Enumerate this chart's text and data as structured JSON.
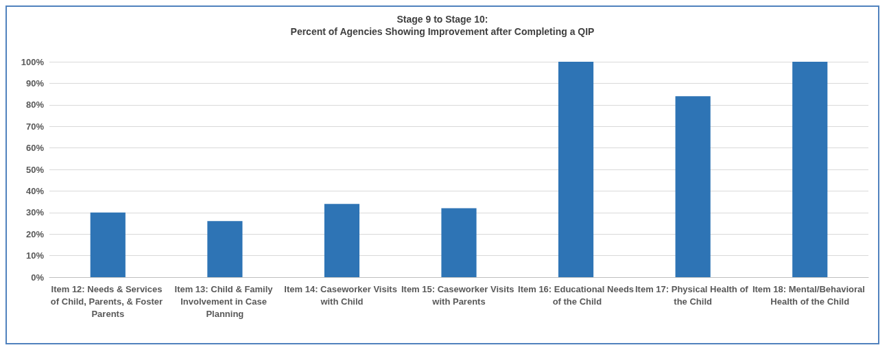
{
  "chart_data": {
    "type": "bar",
    "title": "Stage 9 to Stage 10:",
    "subtitle": "Percent of Agencies Showing Improvement after Completing a QIP",
    "categories": [
      "Item 12: Needs & Services of Child, Parents, & Foster Parents",
      "Item 13: Child & Family Involvement in Case Planning",
      "Item 14: Caseworker Visits with Child",
      "Item 15: Caseworker Visits with Parents",
      "Item 16: Educational Needs of the Child",
      "Item 17: Physical Health of the Child",
      "Item 18: Mental/Behavioral Health of the Child"
    ],
    "values": [
      30,
      26,
      34,
      32,
      100,
      84,
      100
    ],
    "color": "#2e74b5",
    "ylim": [
      0,
      100
    ],
    "yticks": [
      {
        "value": 0,
        "label": "0%"
      },
      {
        "value": 10,
        "label": "10%"
      },
      {
        "value": 20,
        "label": "20%"
      },
      {
        "value": 30,
        "label": "30%"
      },
      {
        "value": 40,
        "label": "40%"
      },
      {
        "value": 50,
        "label": "50%"
      },
      {
        "value": 60,
        "label": "60%"
      },
      {
        "value": 70,
        "label": "70%"
      },
      {
        "value": 80,
        "label": "80%"
      },
      {
        "value": 90,
        "label": "90%"
      },
      {
        "value": 100,
        "label": "100%"
      }
    ],
    "grid": "y"
  }
}
